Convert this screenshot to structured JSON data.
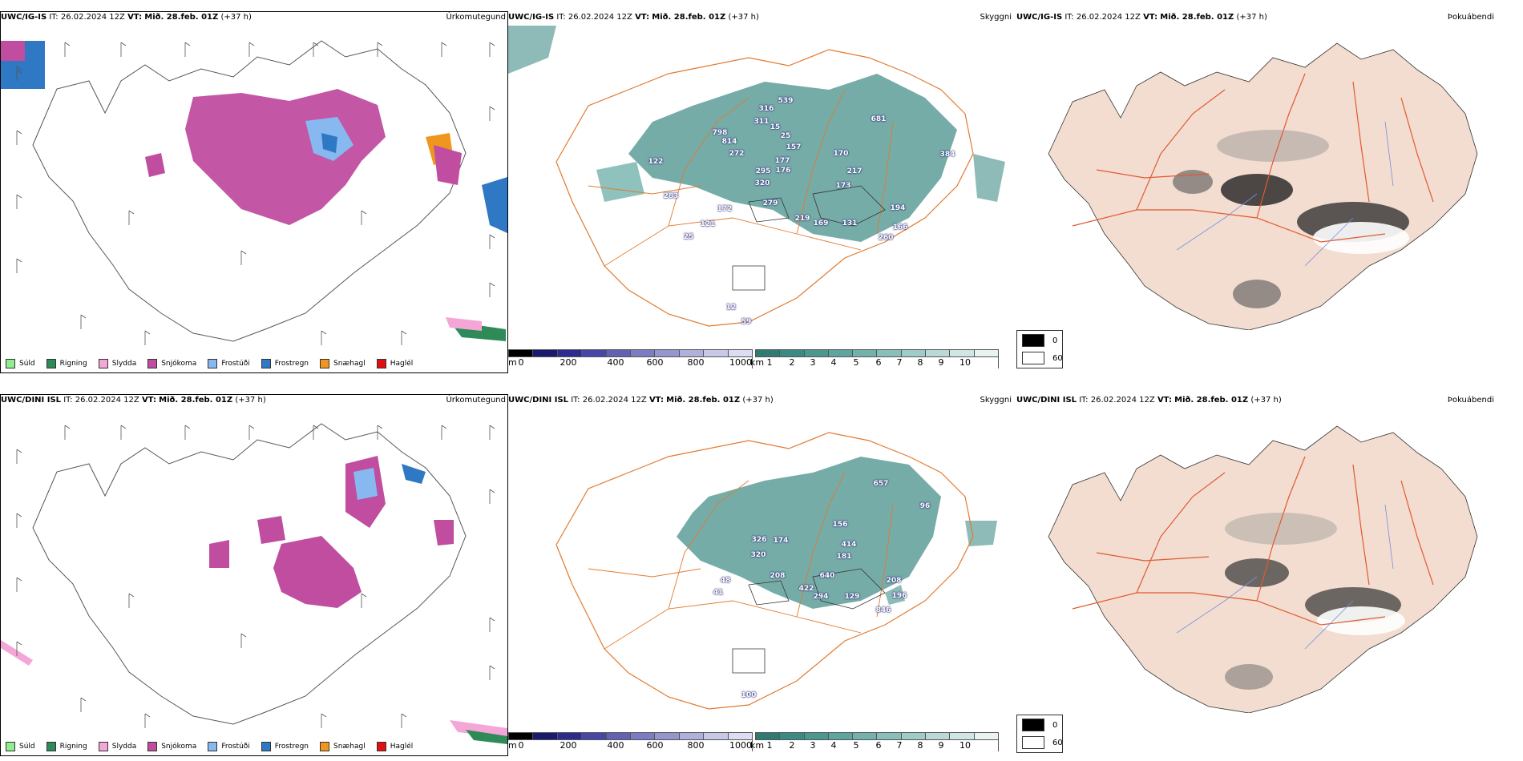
{
  "rows": [
    {
      "model": "UWC/IG-IS",
      "it_label": "IT:",
      "it_value": "26.02.2024 12Z",
      "vt_label": "VT:",
      "vt_value": "Mið. 28.feb. 01Z",
      "lead": "(+37 h)",
      "precip_title": "Úrkomutegund",
      "vis_title": "Skyggni",
      "fog_title": "Þokuábendi",
      "vis_labels": [
        "539",
        "316",
        "311",
        "15",
        "798",
        "814",
        "272",
        "25",
        "157",
        "177",
        "176",
        "295",
        "320",
        "170",
        "681",
        "217",
        "173",
        "122",
        "283",
        "279",
        "172",
        "219",
        "169",
        "131",
        "121",
        "194",
        "166",
        "260",
        "25",
        "384",
        "12",
        "59"
      ]
    },
    {
      "model": "UWC/DINI ISL",
      "it_label": "IT:",
      "it_value": "26.02.2024 12Z",
      "vt_label": "VT:",
      "vt_value": "Mið. 28.feb. 01Z",
      "lead": "(+37 h)",
      "precip_title": "Úrkomutegund",
      "vis_title": "Skyggni",
      "fog_title": "Þokuábendi",
      "vis_labels": [
        "657",
        "96",
        "156",
        "326",
        "174",
        "320",
        "414",
        "181",
        "640",
        "422",
        "294",
        "129",
        "208",
        "196",
        "846",
        "208",
        "48",
        "41",
        "100"
      ]
    }
  ],
  "precip_legend": [
    {
      "label": "Súld",
      "color": "#90ee90"
    },
    {
      "label": "Rigning",
      "color": "#2e8b57"
    },
    {
      "label": "Slydda",
      "color": "#f4a6d7"
    },
    {
      "label": "Snjókoma",
      "color": "#c04da0"
    },
    {
      "label": "Frostúði",
      "color": "#87b9f0"
    },
    {
      "label": "Frostregn",
      "color": "#2f78c4"
    },
    {
      "label": "Snæhagl",
      "color": "#f0961e"
    },
    {
      "label": "Haglél",
      "color": "#e01010"
    }
  ],
  "vis_bar_m": {
    "unit": "m",
    "ticks": [
      "0",
      "200",
      "400",
      "600",
      "800",
      "1000"
    ],
    "colors": [
      "#000000",
      "#1a1a6e",
      "#2c2c8e",
      "#4747a8",
      "#6262b5",
      "#7c7cc2",
      "#9696cf",
      "#b0b0dc",
      "#c8c8e8",
      "#dcdcf2"
    ]
  },
  "vis_bar_km": {
    "unit": "km",
    "ticks": [
      "1",
      "2",
      "3",
      "4",
      "5",
      "6",
      "7",
      "8",
      "9",
      "10"
    ],
    "colors": [
      "#2e7b74",
      "#3b8a83",
      "#4b9891",
      "#5ea59f",
      "#73b2ac",
      "#89bfba",
      "#a0ccc8",
      "#b8d9d6",
      "#d0e6e4",
      "#e8f3f2"
    ]
  },
  "fog_legend": {
    "top": "0",
    "bottom": "60"
  },
  "colors": {
    "snow": "#c04da0",
    "frost_drizzle": "#87b9f0",
    "frost_rain": "#2f78c4",
    "teal": "#5e9e98",
    "roads": "#e07b30",
    "fog_land": "#f2ddd0",
    "fog_roads": "#e05a30",
    "rivers": "#7a8fe0"
  }
}
